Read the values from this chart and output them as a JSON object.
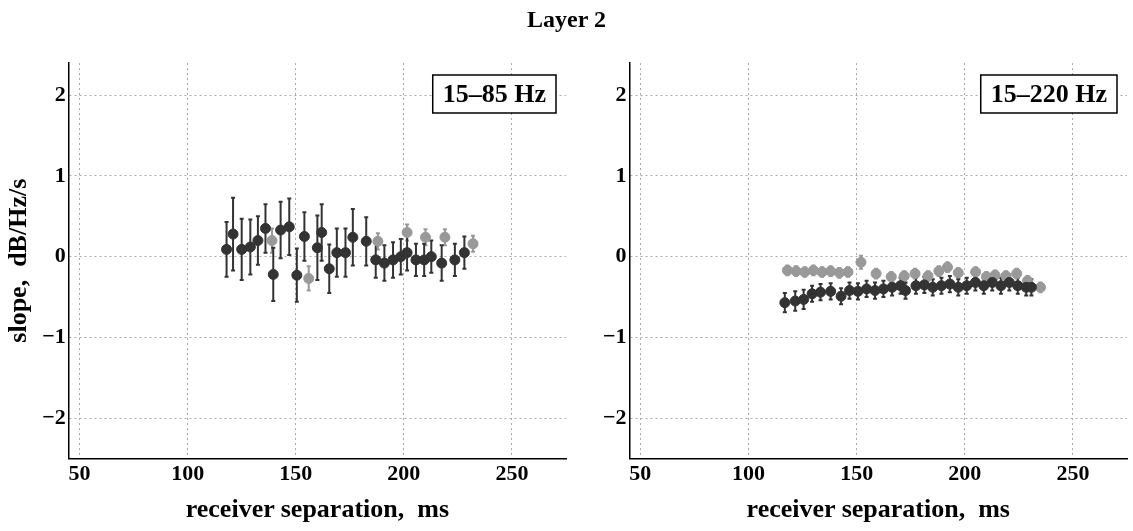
{
  "chart_data": [
    {
      "type": "scatter",
      "title": "Layer 2",
      "xlabel": "receiver separation,  ms",
      "ylabel": "slope,  dB/Hz/s",
      "annotations": [
        "15–85 Hz"
      ],
      "xlim": [
        45,
        275
      ],
      "ylim": [
        -2.5,
        2.4
      ],
      "xticks": [
        50,
        100,
        150,
        200,
        250
      ],
      "yticks": [
        -2,
        -1,
        0,
        1,
        2
      ],
      "grid": true,
      "marker": "circle",
      "series": [
        {
          "color": "#999999",
          "x": [
            139,
            156,
            188,
            201.5,
            210,
            219,
            232
          ],
          "values": [
            0.2,
            -0.27,
            0.19,
            0.3,
            0.24,
            0.24,
            0.16
          ],
          "errors": [
            0.15,
            0.15,
            0.1,
            0.1,
            0.1,
            0.1,
            0.1
          ]
        },
        {
          "color": "#333333",
          "x": [
            118,
            121,
            125,
            129,
            132.5,
            136,
            139.6,
            143,
            147,
            150.5,
            154,
            160,
            162,
            165.5,
            169,
            173,
            176.4,
            182.6,
            187,
            191,
            195,
            198.6,
            201.5,
            205.6,
            209.4,
            212.7,
            217.5,
            223.6,
            228
          ],
          "values": [
            0.09,
            0.28,
            0.09,
            0.12,
            0.2,
            0.35,
            -0.22,
            0.33,
            0.37,
            -0.23,
            0.25,
            0.11,
            0.3,
            -0.15,
            0.05,
            0.05,
            0.24,
            0.19,
            -0.04,
            -0.08,
            -0.04,
            0,
            0.05,
            -0.04,
            -0.04,
            0,
            -0.08,
            -0.04,
            0.05
          ],
          "errors": [
            0.34,
            0.45,
            0.38,
            0.34,
            0.3,
            0.3,
            0.33,
            0.35,
            0.35,
            0.33,
            0.3,
            0.4,
            0.35,
            0.3,
            0.3,
            0.3,
            0.35,
            0.3,
            0.22,
            0.22,
            0.22,
            0.22,
            0.22,
            0.2,
            0.2,
            0.2,
            0.22,
            0.2,
            0.2
          ]
        }
      ]
    },
    {
      "type": "scatter",
      "xlabel": "receiver separation,  ms",
      "annotations": [
        "15–220 Hz"
      ],
      "xlim": [
        45,
        275
      ],
      "ylim": [
        -2.5,
        2.4
      ],
      "xticks": [
        50,
        100,
        150,
        200,
        250
      ],
      "yticks": [
        -2,
        -1,
        0,
        1,
        2
      ],
      "grid": true,
      "marker": "circle",
      "series": [
        {
          "color": "#999999",
          "x": [
            118,
            122,
            126,
            130,
            134,
            138,
            142,
            146,
            152,
            159,
            166,
            172,
            177,
            183,
            188,
            192,
            197,
            205,
            210,
            214,
            219,
            224,
            229,
            235
          ],
          "values": [
            -0.17,
            -0.18,
            -0.19,
            -0.17,
            -0.19,
            -0.18,
            -0.2,
            -0.19,
            -0.07,
            -0.21,
            -0.25,
            -0.24,
            -0.21,
            -0.24,
            -0.18,
            -0.13,
            -0.2,
            -0.19,
            -0.25,
            -0.23,
            -0.24,
            -0.21,
            -0.3,
            -0.38
          ],
          "errors": [
            0.06,
            0.06,
            0.06,
            0.06,
            0.06,
            0.06,
            0.06,
            0.06,
            0.08,
            0.06,
            0.06,
            0.06,
            0.06,
            0.06,
            0.06,
            0.06,
            0.06,
            0.06,
            0.06,
            0.06,
            0.06,
            0.06,
            0.06,
            0.06
          ]
        },
        {
          "color": "#333333",
          "x": [
            116.8,
            121.6,
            125.5,
            129.4,
            133.3,
            138,
            142.8,
            146.7,
            150.6,
            154.6,
            158.5,
            162.4,
            166.4,
            170.3,
            172.6,
            177.4,
            181.3,
            185.2,
            189.2,
            193.1,
            197,
            200.9,
            204.9,
            208.8,
            212.7,
            216.7,
            220.6,
            224.5,
            228.4,
            230.8
          ],
          "values": [
            -0.57,
            -0.55,
            -0.53,
            -0.46,
            -0.44,
            -0.43,
            -0.49,
            -0.42,
            -0.43,
            -0.4,
            -0.42,
            -0.4,
            -0.38,
            -0.36,
            -0.42,
            -0.36,
            -0.35,
            -0.38,
            -0.36,
            -0.34,
            -0.38,
            -0.36,
            -0.32,
            -0.36,
            -0.32,
            -0.36,
            -0.32,
            -0.36,
            -0.38,
            -0.38
          ],
          "errors": [
            0.12,
            0.12,
            0.12,
            0.1,
            0.1,
            0.1,
            0.1,
            0.1,
            0.1,
            0.1,
            0.1,
            0.1,
            0.1,
            0.1,
            0.1,
            0.1,
            0.1,
            0.1,
            0.1,
            0.1,
            0.1,
            0.1,
            0.1,
            0.1,
            0.1,
            0.1,
            0.1,
            0.1,
            0.1,
            0.1
          ]
        }
      ]
    }
  ]
}
